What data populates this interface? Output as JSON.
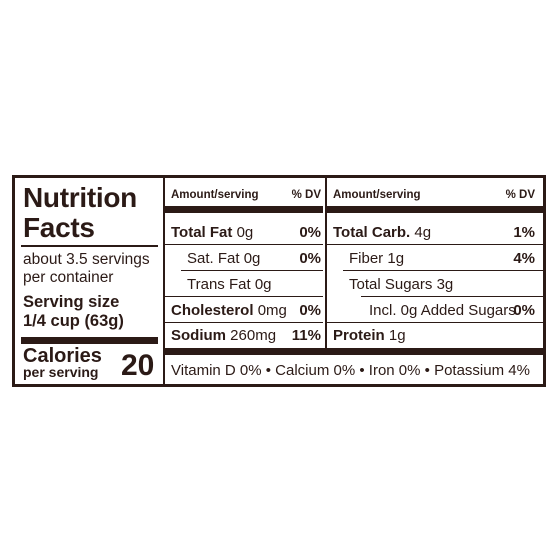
{
  "label": {
    "title_line1": "Nutrition",
    "title_line2": "Facts",
    "servings_line1": "about 3.5 servings",
    "servings_line2": "per container",
    "serving_size_label": "Serving size",
    "serving_size_value": "1/4 cup (63g)",
    "calories_label": "Calories",
    "calories_sublabel": "per serving",
    "calories_value": "20"
  },
  "left_table": {
    "header_amount": "Amount/serving",
    "header_dv": "% DV",
    "rows": [
      {
        "name": "Total Fat",
        "amount": "0g",
        "dv": "0%"
      },
      {
        "name": "Sat. Fat",
        "amount": "0g",
        "dv": "0%"
      },
      {
        "name": "Trans Fat",
        "amount": "0g",
        "dv": ""
      },
      {
        "name": "Cholesterol",
        "amount": "0mg",
        "dv": "0%"
      },
      {
        "name": "Sodium",
        "amount": "260mg",
        "dv": "11%"
      }
    ]
  },
  "right_table": {
    "header_amount": "Amount/serving",
    "header_dv": "% DV",
    "rows": [
      {
        "name": "Total Carb.",
        "amount": "4g",
        "dv": "1%"
      },
      {
        "name": "Fiber",
        "amount": "1g",
        "dv": "4%"
      },
      {
        "name": "Total Sugars",
        "amount": "3g",
        "dv": ""
      },
      {
        "name": "Incl. 0g Added Sugars",
        "amount": "",
        "dv": "0%"
      },
      {
        "name": "Protein",
        "amount": "1g",
        "dv": ""
      }
    ]
  },
  "footer": {
    "text": "Vitamin D 0% • Calcium 0% • Iron 0% • Potassium 4%"
  },
  "colors": {
    "ink": "#2b1a16",
    "background": "#ffffff"
  }
}
